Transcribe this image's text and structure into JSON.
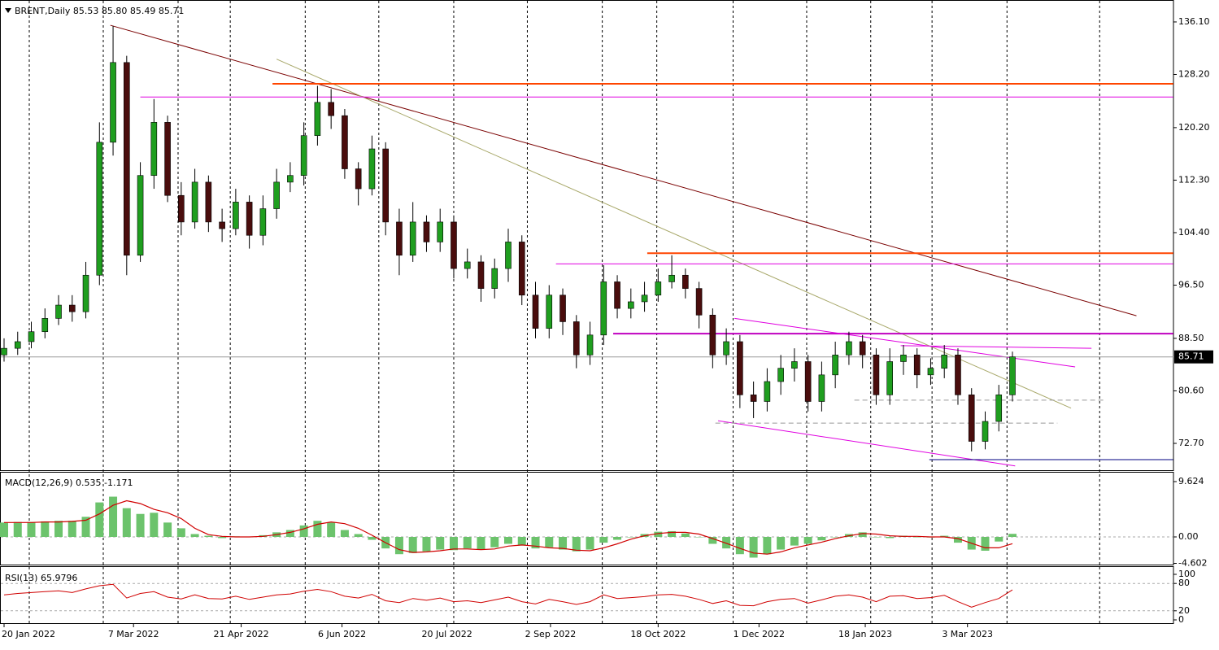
{
  "chart_data": [
    {
      "type": "candlestick",
      "title": "BRENT,Daily  85.53 85.80 85.49 85.71",
      "open": [
        86,
        87,
        88,
        89.5,
        91.5,
        93.5,
        92.5,
        98,
        118,
        130,
        101,
        113,
        121,
        110,
        106,
        112,
        106,
        105,
        109,
        104,
        108,
        112,
        113,
        119,
        124,
        122,
        114,
        111,
        117,
        106,
        101,
        106,
        103,
        106,
        99,
        100,
        96,
        99,
        103,
        95,
        90,
        95,
        91,
        86,
        89,
        97,
        93,
        94,
        95,
        97,
        98,
        96,
        92,
        86,
        88,
        80,
        79,
        82,
        84,
        85,
        79,
        83,
        86,
        88,
        86,
        80,
        85,
        86,
        83,
        84,
        86,
        80,
        73,
        76,
        80
      ],
      "high": [
        88.5,
        89.5,
        91,
        93,
        95,
        95,
        100,
        121,
        135.5,
        131,
        115,
        124.5,
        122,
        112,
        114,
        113,
        108,
        111,
        110,
        110,
        114,
        115,
        121,
        126.5,
        126,
        123,
        115,
        119,
        118,
        108,
        109,
        107,
        108,
        107,
        102,
        101,
        100.5,
        105,
        104,
        97,
        96.5,
        96,
        92,
        91,
        99.5,
        98,
        96,
        97,
        99,
        101,
        99,
        97,
        93,
        90,
        89,
        82,
        84,
        86,
        87,
        86,
        85,
        88,
        89.5,
        89,
        87,
        87,
        87.5,
        87,
        85.5,
        87.5,
        87,
        81,
        77.5,
        81.5,
        86.5
      ],
      "low": [
        85,
        86,
        87,
        88.5,
        90.5,
        91,
        91.5,
        96.5,
        116,
        98,
        100,
        111,
        109,
        104,
        105,
        104.5,
        103,
        104,
        102,
        102.5,
        106.5,
        110.5,
        111.5,
        117.5,
        120,
        112.5,
        108.5,
        110,
        104,
        98,
        100,
        101.5,
        101.5,
        97.5,
        97.5,
        94,
        94.5,
        97,
        93.5,
        88.5,
        88.5,
        89,
        84,
        84.5,
        87.5,
        91.5,
        91.5,
        92.5,
        94,
        96,
        94.5,
        90,
        84,
        84.5,
        78,
        76.5,
        77.5,
        80,
        82,
        77.5,
        77.5,
        81,
        84.5,
        84,
        78.5,
        78.5,
        83,
        81,
        81.5,
        82.5,
        78.5,
        71.5,
        71.8,
        74.5,
        79
      ],
      "close": [
        87,
        88,
        89.5,
        91.5,
        93.5,
        92.5,
        98,
        118,
        130,
        101,
        113,
        121,
        110,
        106,
        112,
        106,
        105,
        109,
        104,
        108,
        112,
        113,
        119,
        124,
        122,
        114,
        111,
        117,
        106,
        101,
        106,
        103,
        106,
        99,
        100,
        96,
        99,
        103,
        95,
        90,
        95,
        91,
        86,
        89,
        97,
        93,
        94,
        95,
        97,
        98,
        96,
        92,
        86,
        88,
        80,
        79,
        82,
        84,
        85,
        79,
        83,
        86,
        88,
        86,
        80,
        85,
        86,
        83,
        84,
        86,
        80,
        73,
        76,
        80,
        85.71
      ],
      "up_color": "#1f9e1f",
      "down_color": "#4a0d0d",
      "wick_color": "#000000",
      "last_price_color": "#9a9a9a",
      "ylim": [
        68.66,
        139.4
      ],
      "yticks": [
        {
          "value": 136.1,
          "label": "136.10"
        },
        {
          "value": 128.2,
          "label": "128.20"
        },
        {
          "value": 120.2,
          "label": "120.20"
        },
        {
          "value": 112.3,
          "label": "112.30"
        },
        {
          "value": 104.4,
          "label": "104.40"
        },
        {
          "value": 96.5,
          "label": "96.50"
        },
        {
          "value": 88.5,
          "label": "88.50"
        },
        {
          "value": 80.6,
          "label": "80.60"
        },
        {
          "value": 72.7,
          "label": "72.70"
        }
      ],
      "xticks": [
        {
          "value": 0,
          "label": "20 Jan 2022"
        },
        {
          "value": 9.5,
          "label": "7 Mar 2022"
        },
        {
          "value": 17.4,
          "label": "21 Apr 2022"
        },
        {
          "value": 24.8,
          "label": "6 Jun 2022"
        },
        {
          "value": 32.5,
          "label": "20 Jul 2022"
        },
        {
          "value": 40.1,
          "label": "2 Sep 2022"
        },
        {
          "value": 48,
          "label": "18 Oct 2022"
        },
        {
          "value": 55.4,
          "label": "1 Dec 2022"
        },
        {
          "value": 63.2,
          "label": "18 Jan 2023"
        },
        {
          "value": 70.7,
          "label": "3 Mar 2023"
        }
      ],
      "xgrid": [
        1.85,
        7.28,
        12.77,
        16.6,
        22.1,
        27.5,
        33,
        38.4,
        43.9,
        47.9,
        53.5,
        58.9,
        63.6,
        68.1,
        73.6,
        80.4
      ],
      "drawings": [
        {
          "color": "#7a0000",
          "x": [
            7.8,
            83.1
          ],
          "y": [
            135.6,
            91.9
          ]
        },
        {
          "color": "#a8a86a",
          "x": [
            20.0,
            78.3
          ],
          "y": [
            130.5,
            78.0
          ]
        },
        {
          "color": "#ff4500",
          "x": [
            19.7,
            85.8
          ],
          "y": [
            126.8,
            126.8
          ],
          "thick": true
        },
        {
          "color": "#e000e0",
          "x": [
            10,
            85.8
          ],
          "y": [
            124.8,
            124.8
          ]
        },
        {
          "color": "#ff4500",
          "x": [
            47.2,
            85.8
          ],
          "y": [
            101.3,
            101.3
          ],
          "thick": true
        },
        {
          "color": "#e000e0",
          "x": [
            40.5,
            85.8
          ],
          "y": [
            99.7,
            99.7
          ]
        },
        {
          "color": "#c000c0",
          "x": [
            44.7,
            85.8
          ],
          "y": [
            89.2,
            89.2
          ],
          "thick": true
        },
        {
          "color": "#e000e0",
          "x": [
            53.6,
            78.6
          ],
          "y": [
            91.5,
            84.2
          ]
        },
        {
          "color": "#e000e0",
          "x": [
            52.4,
            74.2
          ],
          "y": [
            76.1,
            69.3
          ]
        },
        {
          "color": "#e000e0",
          "x": [
            65.8,
            79.8
          ],
          "y": [
            87.4,
            87.0
          ]
        },
        {
          "color": "#999999",
          "x": [
            62.4,
            80.8
          ],
          "y": [
            79.2,
            79.2
          ],
          "dashed": true
        },
        {
          "color": "#999999",
          "x": [
            52.2,
            77.3
          ],
          "y": [
            75.75,
            75.75
          ],
          "dashed": true
        },
        {
          "color": "#000080",
          "x": [
            67.9,
            85.8
          ],
          "y": [
            70.25,
            70.25
          ]
        }
      ]
    },
    {
      "type": "macd",
      "title": "MACD(12,26,9) 0.535 -1.171",
      "series": [
        {
          "style": "histogram",
          "color": "#6cc36c",
          "values": [
            2.5,
            2.6,
            2.6,
            2.7,
            2.8,
            2.8,
            3.5,
            6,
            7,
            5,
            4,
            4.2,
            2.5,
            1.5,
            0.5,
            0.2,
            -0.2,
            0.1,
            0,
            0.3,
            0.8,
            1.2,
            2,
            2.8,
            2.5,
            1.2,
            0.5,
            -0.5,
            -2,
            -3,
            -2.8,
            -2.5,
            -2.2,
            -2.3,
            -2,
            -2.2,
            -1.8,
            -1.2,
            -1.5,
            -2,
            -1.8,
            -2.2,
            -2.5,
            -2.2,
            -1,
            -0.5,
            0,
            0.5,
            0.9,
            1,
            0.6,
            0,
            -1.2,
            -2,
            -3,
            -3.6,
            -3,
            -2.2,
            -1.5,
            -1.2,
            -0.6,
            0,
            0.5,
            0.8,
            0,
            -0.2,
            0.2,
            0,
            -0.1,
            0.2,
            -1,
            -2.2,
            -2.4,
            -0.8,
            0.535
          ]
        },
        {
          "style": "line",
          "color": "#d00000",
          "values": [
            2.5,
            2.5,
            2.5,
            2.6,
            2.6,
            2.7,
            2.9,
            4,
            5.5,
            6.3,
            5.8,
            4.8,
            4.2,
            3.2,
            1.5,
            0.4,
            0.1,
            0,
            0,
            0.1,
            0.4,
            0.8,
            1.4,
            2.2,
            2.6,
            2.3,
            1.5,
            0.3,
            -1,
            -2.2,
            -2.7,
            -2.6,
            -2.4,
            -2.1,
            -2.1,
            -2.2,
            -2.1,
            -1.6,
            -1.4,
            -1.6,
            -1.9,
            -2,
            -2.3,
            -2.4,
            -1.9,
            -1.2,
            -0.4,
            0.2,
            0.6,
            0.8,
            0.8,
            0.5,
            -0.3,
            -1.1,
            -2,
            -2.8,
            -3,
            -2.6,
            -1.9,
            -1.4,
            -0.9,
            -0.3,
            0.2,
            0.6,
            0.5,
            0.2,
            0.1,
            0.1,
            0,
            0,
            -0.3,
            -1.1,
            -1.9,
            -1.9,
            -1.171
          ]
        }
      ],
      "ylim": [
        -4.81,
        11.32
      ],
      "yticks": [
        9.624,
        {
          "value": 0,
          "label": "0.00"
        },
        -4.602
      ],
      "levels": [
        0
      ]
    },
    {
      "type": "line",
      "title": "RSI(13) 65.9796",
      "color": "#d00000",
      "values": [
        55,
        58,
        60,
        62,
        64,
        60,
        68,
        75,
        78,
        48,
        58,
        62,
        50,
        46,
        55,
        47,
        46,
        52,
        45,
        50,
        55,
        57,
        63,
        67,
        62,
        52,
        48,
        56,
        42,
        38,
        47,
        43,
        48,
        40,
        42,
        38,
        44,
        50,
        40,
        35,
        45,
        40,
        34,
        40,
        55,
        47,
        49,
        51,
        55,
        56,
        52,
        45,
        36,
        42,
        32,
        31,
        40,
        45,
        47,
        37,
        44,
        52,
        55,
        50,
        40,
        52,
        53,
        47,
        49,
        54,
        40,
        28,
        38,
        47,
        65.9796
      ],
      "ylim": [
        0,
        100
      ],
      "yticks": [
        100,
        80,
        20,
        0
      ],
      "levels": [
        80,
        20
      ]
    }
  ]
}
